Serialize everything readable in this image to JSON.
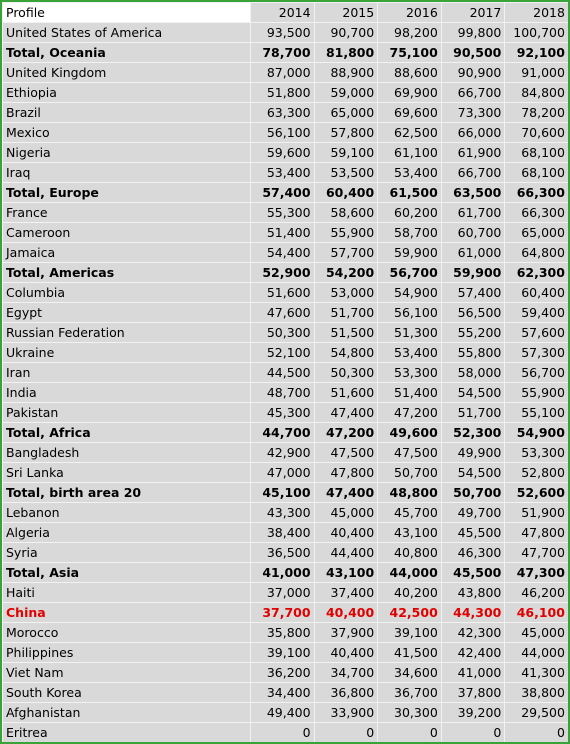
{
  "table": {
    "headers": [
      "Profile",
      "2014",
      "2015",
      "2016",
      "2017",
      "2018"
    ],
    "rows": [
      {
        "label": "United States of America",
        "values": [
          "93,500",
          "90,700",
          "98,200",
          "99,800",
          "100,700"
        ],
        "kind": "normal"
      },
      {
        "label": "Total, Oceania",
        "values": [
          "78,700",
          "81,800",
          "75,100",
          "90,500",
          "92,100"
        ],
        "kind": "total"
      },
      {
        "label": "United Kingdom",
        "values": [
          "87,000",
          "88,900",
          "88,600",
          "90,900",
          "91,000"
        ],
        "kind": "normal"
      },
      {
        "label": "Ethiopia",
        "values": [
          "51,800",
          "59,000",
          "69,900",
          "66,700",
          "84,800"
        ],
        "kind": "normal"
      },
      {
        "label": "Brazil",
        "values": [
          "63,300",
          "65,000",
          "69,600",
          "73,300",
          "78,200"
        ],
        "kind": "normal"
      },
      {
        "label": "Mexico",
        "values": [
          "56,100",
          "57,800",
          "62,500",
          "66,000",
          "70,600"
        ],
        "kind": "normal"
      },
      {
        "label": "Nigeria",
        "values": [
          "59,600",
          "59,100",
          "61,100",
          "61,900",
          "68,100"
        ],
        "kind": "normal"
      },
      {
        "label": "Iraq",
        "values": [
          "53,400",
          "53,500",
          "53,400",
          "66,700",
          "68,100"
        ],
        "kind": "normal"
      },
      {
        "label": "Total, Europe",
        "values": [
          "57,400",
          "60,400",
          "61,500",
          "63,500",
          "66,300"
        ],
        "kind": "total"
      },
      {
        "label": "France",
        "values": [
          "55,300",
          "58,600",
          "60,200",
          "61,700",
          "66,300"
        ],
        "kind": "normal"
      },
      {
        "label": "Cameroon",
        "values": [
          "51,400",
          "55,900",
          "58,700",
          "60,700",
          "65,000"
        ],
        "kind": "normal"
      },
      {
        "label": "Jamaica",
        "values": [
          "54,400",
          "57,700",
          "59,900",
          "61,000",
          "64,800"
        ],
        "kind": "normal"
      },
      {
        "label": "Total, Americas",
        "values": [
          "52,900",
          "54,200",
          "56,700",
          "59,900",
          "62,300"
        ],
        "kind": "total"
      },
      {
        "label": "Columbia",
        "values": [
          "51,600",
          "53,000",
          "54,900",
          "57,400",
          "60,400"
        ],
        "kind": "normal"
      },
      {
        "label": "Egypt",
        "values": [
          "47,600",
          "51,700",
          "56,100",
          "56,500",
          "59,400"
        ],
        "kind": "normal"
      },
      {
        "label": "Russian Federation",
        "values": [
          "50,300",
          "51,500",
          "51,300",
          "55,200",
          "57,600"
        ],
        "kind": "normal"
      },
      {
        "label": "Ukraine",
        "values": [
          "52,100",
          "54,800",
          "53,400",
          "55,800",
          "57,300"
        ],
        "kind": "normal"
      },
      {
        "label": "Iran",
        "values": [
          "44,500",
          "50,300",
          "53,300",
          "58,000",
          "56,700"
        ],
        "kind": "normal"
      },
      {
        "label": "India",
        "values": [
          "48,700",
          "51,600",
          "51,400",
          "54,500",
          "55,900"
        ],
        "kind": "normal"
      },
      {
        "label": "Pakistan",
        "values": [
          "45,300",
          "47,400",
          "47,200",
          "51,700",
          "55,100"
        ],
        "kind": "normal"
      },
      {
        "label": "Total, Africa",
        "values": [
          "44,700",
          "47,200",
          "49,600",
          "52,300",
          "54,900"
        ],
        "kind": "total"
      },
      {
        "label": "Bangladesh",
        "values": [
          "42,900",
          "47,500",
          "47,500",
          "49,900",
          "53,300"
        ],
        "kind": "normal"
      },
      {
        "label": "Sri Lanka",
        "values": [
          "47,000",
          "47,800",
          "50,700",
          "54,500",
          "52,800"
        ],
        "kind": "normal"
      },
      {
        "label": "Total, birth area 20",
        "values": [
          "45,100",
          "47,400",
          "48,800",
          "50,700",
          "52,600"
        ],
        "kind": "total"
      },
      {
        "label": "Lebanon",
        "values": [
          "43,300",
          "45,000",
          "45,700",
          "49,700",
          "51,900"
        ],
        "kind": "normal"
      },
      {
        "label": "Algeria",
        "values": [
          "38,400",
          "40,400",
          "43,100",
          "45,500",
          "47,800"
        ],
        "kind": "normal"
      },
      {
        "label": "Syria",
        "values": [
          "36,500",
          "44,400",
          "40,800",
          "46,300",
          "47,700"
        ],
        "kind": "normal"
      },
      {
        "label": "Total, Asia",
        "values": [
          "41,000",
          "43,100",
          "44,000",
          "45,500",
          "47,300"
        ],
        "kind": "total"
      },
      {
        "label": "Haiti",
        "values": [
          "37,000",
          "37,400",
          "40,200",
          "43,800",
          "46,200"
        ],
        "kind": "normal"
      },
      {
        "label": "China",
        "values": [
          "37,700",
          "40,400",
          "42,500",
          "44,300",
          "46,100"
        ],
        "kind": "highlight"
      },
      {
        "label": "Morocco",
        "values": [
          "35,800",
          "37,900",
          "39,100",
          "42,300",
          "45,000"
        ],
        "kind": "normal"
      },
      {
        "label": "Philippines",
        "values": [
          "39,100",
          "40,400",
          "41,500",
          "42,400",
          "44,000"
        ],
        "kind": "normal"
      },
      {
        "label": "Viet Nam",
        "values": [
          "36,200",
          "34,700",
          "34,600",
          "41,000",
          "41,300"
        ],
        "kind": "normal"
      },
      {
        "label": "South Korea",
        "values": [
          "34,400",
          "36,800",
          "36,700",
          "37,800",
          "38,800"
        ],
        "kind": "normal"
      },
      {
        "label": "Afghanistan",
        "values": [
          "49,400",
          "33,900",
          "30,300",
          "39,200",
          "29,500"
        ],
        "kind": "normal"
      },
      {
        "label": "Eritrea",
        "values": [
          "0",
          "0",
          "0",
          "0",
          "0"
        ],
        "kind": "normal"
      }
    ]
  },
  "colors": {
    "border": "#3aa337",
    "cell_background": "#d9d9d9",
    "gridline": "#f2f2f2",
    "header_first_cell": "#ffffff",
    "highlight_text": "#e00000"
  }
}
